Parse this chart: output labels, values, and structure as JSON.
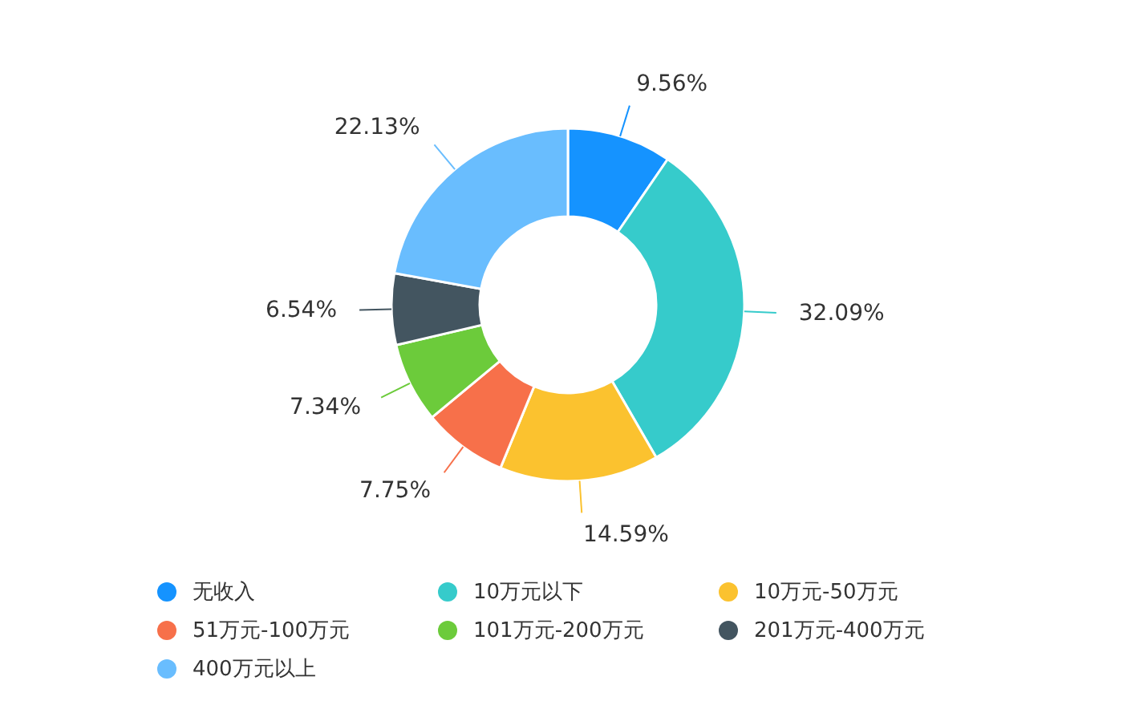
{
  "chart_data": {
    "type": "donut",
    "categories": [
      "无收入",
      "10万元以下",
      "10万元-50万元",
      "51万元-100万元",
      "101万元-200万元",
      "201万元-400万元",
      "400万元以上"
    ],
    "values": [
      9.56,
      32.09,
      14.59,
      7.75,
      7.34,
      6.54,
      22.13
    ],
    "value_labels": [
      "9.56%",
      "32.09%",
      "14.59%",
      "7.75%",
      "7.34%",
      "6.54%",
      "22.13%"
    ],
    "colors": [
      "#1593ff",
      "#36cbcb",
      "#fbc22f",
      "#f7704a",
      "#6ccb3b",
      "#435560",
      "#69bdfe"
    ],
    "legend": "bottom"
  }
}
